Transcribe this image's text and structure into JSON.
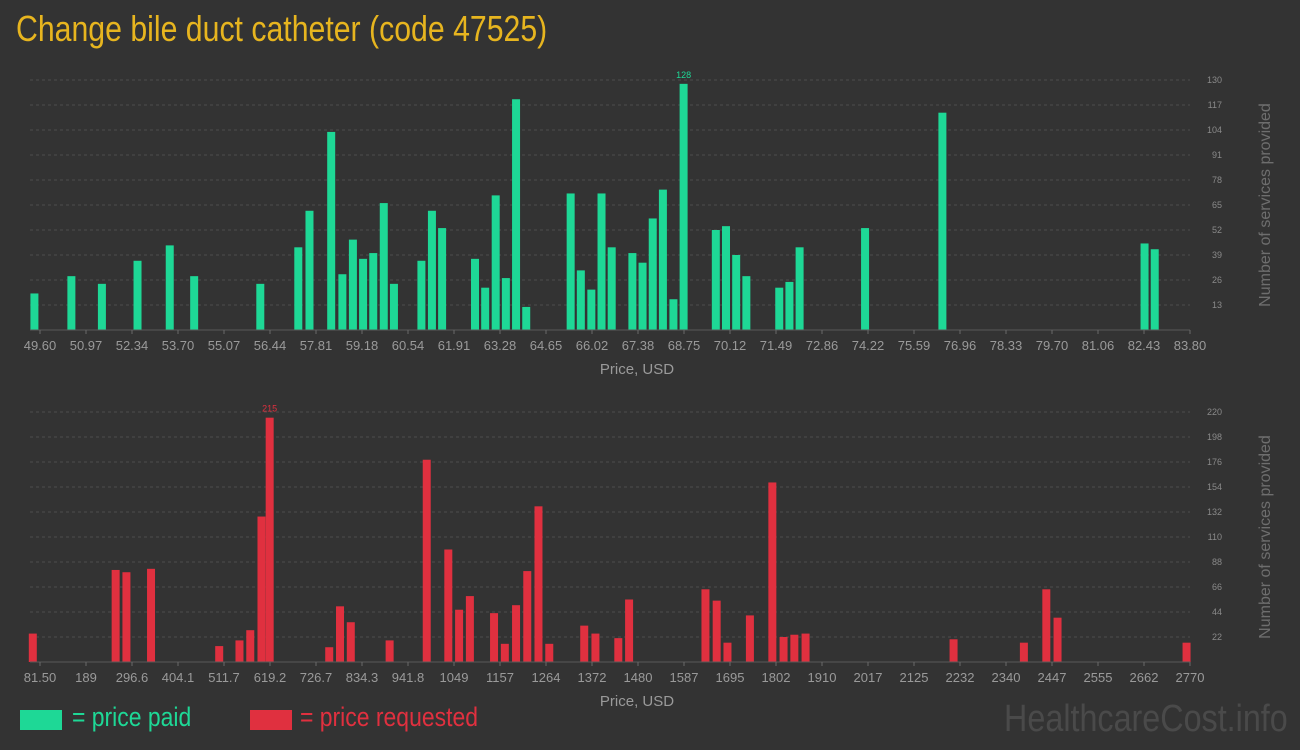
{
  "title": "Change bile duct catheter (code 47525)",
  "watermark": "HealthcareCost.info",
  "legend": {
    "paid_label": "= price paid",
    "requested_label": "= price requested",
    "paid_color": "#1ed896",
    "requested_color": "#e0303f"
  },
  "chart_data": [
    {
      "type": "bar",
      "name": "price-paid",
      "xlabel": "Price, USD",
      "ylabel": "Number of services provided",
      "xlim": [
        49.6,
        83.8
      ],
      "ylim": [
        0,
        130
      ],
      "x_ticks": [
        "49.60",
        "50.97",
        "52.34",
        "53.70",
        "55.07",
        "56.44",
        "57.81",
        "59.18",
        "60.54",
        "61.91",
        "63.28",
        "64.65",
        "66.02",
        "67.38",
        "68.75",
        "70.12",
        "71.49",
        "72.86",
        "74.22",
        "75.59",
        "76.96",
        "78.33",
        "79.70",
        "81.06",
        "82.43",
        "83.80"
      ],
      "y_ticks": [
        13,
        26,
        39,
        52,
        65,
        78,
        91,
        104,
        117,
        130
      ],
      "max_label": "128",
      "max_value": 128,
      "bars": [
        [
          49.73,
          19
        ],
        [
          50.82,
          28
        ],
        [
          51.72,
          24
        ],
        [
          52.77,
          36
        ],
        [
          53.72,
          44
        ],
        [
          54.44,
          28
        ],
        [
          56.39,
          24
        ],
        [
          57.51,
          43
        ],
        [
          57.84,
          62
        ],
        [
          58.48,
          103
        ],
        [
          58.81,
          29
        ],
        [
          59.12,
          47
        ],
        [
          59.42,
          37
        ],
        [
          59.72,
          40
        ],
        [
          60.03,
          66
        ],
        [
          60.33,
          24
        ],
        [
          61.14,
          36
        ],
        [
          61.45,
          62
        ],
        [
          61.75,
          53
        ],
        [
          62.72,
          37
        ],
        [
          63.02,
          22
        ],
        [
          63.33,
          70
        ],
        [
          63.63,
          27
        ],
        [
          63.93,
          120
        ],
        [
          64.23,
          12
        ],
        [
          65.54,
          71
        ],
        [
          65.84,
          31
        ],
        [
          66.15,
          21
        ],
        [
          66.45,
          71
        ],
        [
          66.75,
          43
        ],
        [
          67.36,
          40
        ],
        [
          67.66,
          35
        ],
        [
          67.96,
          58
        ],
        [
          68.26,
          73
        ],
        [
          68.57,
          16
        ],
        [
          68.87,
          128
        ],
        [
          69.82,
          52
        ],
        [
          70.12,
          54
        ],
        [
          70.42,
          39
        ],
        [
          70.72,
          28
        ],
        [
          71.69,
          22
        ],
        [
          71.99,
          25
        ],
        [
          72.29,
          43
        ],
        [
          74.22,
          53
        ],
        [
          76.5,
          113
        ],
        [
          82.46,
          45
        ],
        [
          82.76,
          42
        ]
      ]
    },
    {
      "type": "bar",
      "name": "price-requested",
      "xlabel": "Price, USD",
      "ylabel": "Number of services provided",
      "xlim": [
        81.5,
        2770
      ],
      "ylim": [
        0,
        220
      ],
      "x_ticks": [
        "81.50",
        "189",
        "296.6",
        "404.1",
        "511.7",
        "619.2",
        "726.7",
        "834.3",
        "941.8",
        "1049",
        "1157",
        "1264",
        "1372",
        "1480",
        "1587",
        "1695",
        "1802",
        "1910",
        "2017",
        "2125",
        "2232",
        "2340",
        "2447",
        "2555",
        "2662",
        "2770"
      ],
      "y_ticks": [
        22,
        44,
        66,
        88,
        110,
        132,
        154,
        176,
        198,
        220
      ],
      "max_label": "215",
      "max_value": 215,
      "bars": [
        [
          88,
          25
        ],
        [
          280,
          81
        ],
        [
          305,
          79
        ],
        [
          362,
          82
        ],
        [
          520,
          14
        ],
        [
          567,
          19
        ],
        [
          592,
          28
        ],
        [
          618,
          128
        ],
        [
          637,
          215
        ],
        [
          775,
          13
        ],
        [
          800,
          49
        ],
        [
          825,
          35
        ],
        [
          915,
          19
        ],
        [
          1001,
          178
        ],
        [
          1051,
          99
        ],
        [
          1076,
          46
        ],
        [
          1101,
          58
        ],
        [
          1157,
          43
        ],
        [
          1182,
          16
        ],
        [
          1208,
          50
        ],
        [
          1234,
          80
        ],
        [
          1260,
          137
        ],
        [
          1285,
          16
        ],
        [
          1366,
          32
        ],
        [
          1392,
          25
        ],
        [
          1445,
          21
        ],
        [
          1470,
          55
        ],
        [
          1647,
          64
        ],
        [
          1673,
          54
        ],
        [
          1698,
          17
        ],
        [
          1750,
          41
        ],
        [
          1802,
          158
        ],
        [
          1828,
          22
        ],
        [
          1853,
          24
        ],
        [
          1879,
          25
        ],
        [
          2222,
          20
        ],
        [
          2385,
          17
        ],
        [
          2437,
          64
        ],
        [
          2463,
          39
        ],
        [
          2762,
          17
        ]
      ]
    }
  ]
}
